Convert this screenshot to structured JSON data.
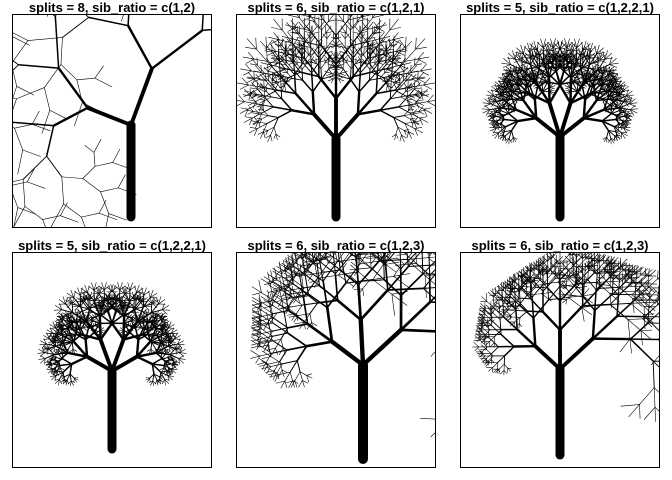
{
  "panels": [
    {
      "title": "splits = 8, sib_ratio = c(1,2)",
      "sib_ratio": [
        1,
        2
      ],
      "splits": 8,
      "style": "sweep-left"
    },
    {
      "title": "splits = 6, sib_ratio = c(1,2,1)",
      "sib_ratio": [
        1,
        2,
        1
      ],
      "splits": 6,
      "style": "symmetric"
    },
    {
      "title": "splits = 5, sib_ratio = c(1,2,2,1)",
      "sib_ratio": [
        1,
        2,
        2,
        1
      ],
      "splits": 5,
      "style": "dense"
    },
    {
      "title": "splits = 5, sib_ratio = c(1,2,2,1)",
      "sib_ratio": [
        1,
        2,
        2,
        1
      ],
      "splits": 5,
      "style": "wide-flat"
    },
    {
      "title": "splits = 6, sib_ratio = c(1,2,3)",
      "sib_ratio": [
        1,
        2,
        3
      ],
      "splits": 6,
      "style": "umbrella"
    },
    {
      "title": "splits = 6, sib_ratio = c(1,2,3)",
      "sib_ratio": [
        1,
        2,
        3
      ],
      "splits": 6,
      "style": "split-crown"
    }
  ],
  "colors": {
    "ink": "#000000",
    "background": "#ffffff"
  }
}
